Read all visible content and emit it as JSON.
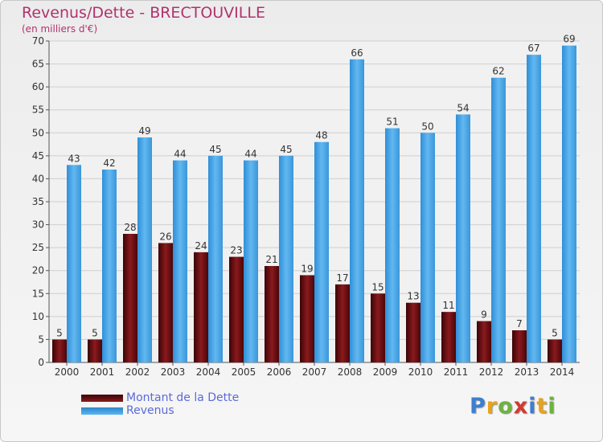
{
  "chart_data": {
    "type": "bar",
    "title": "Revenus/Dette - BRECTOUVILLE",
    "subtitle": "(en milliers d'€)",
    "categories": [
      "2000",
      "2001",
      "2002",
      "2003",
      "2004",
      "2005",
      "2006",
      "2007",
      "2008",
      "2009",
      "2010",
      "2011",
      "2012",
      "2013",
      "2014"
    ],
    "series": [
      {
        "name": "Montant de la Dette",
        "color": "#8a1a1e",
        "values": [
          5,
          5,
          28,
          26,
          24,
          23,
          21,
          19,
          17,
          15,
          13,
          11,
          9,
          7,
          5
        ]
      },
      {
        "name": "Revenus",
        "color": "#4aa6e6",
        "values": [
          43,
          42,
          49,
          44,
          45,
          44,
          45,
          48,
          66,
          51,
          50,
          54,
          62,
          67,
          69
        ]
      }
    ],
    "yticks": [
      0,
      5,
      10,
      15,
      20,
      25,
      30,
      35,
      40,
      45,
      50,
      55,
      60,
      65,
      70
    ],
    "ylim": [
      0,
      70
    ],
    "grid": true,
    "legend_position": "bottom-left"
  },
  "logo": {
    "letters": [
      "P",
      "r",
      "o",
      "x",
      "i",
      "t",
      "i"
    ],
    "colors": [
      "#3c7fd0",
      "#e8a31a",
      "#6cb33f",
      "#d23a2e",
      "#3c7fd0",
      "#e8a31a",
      "#6cb33f"
    ]
  }
}
